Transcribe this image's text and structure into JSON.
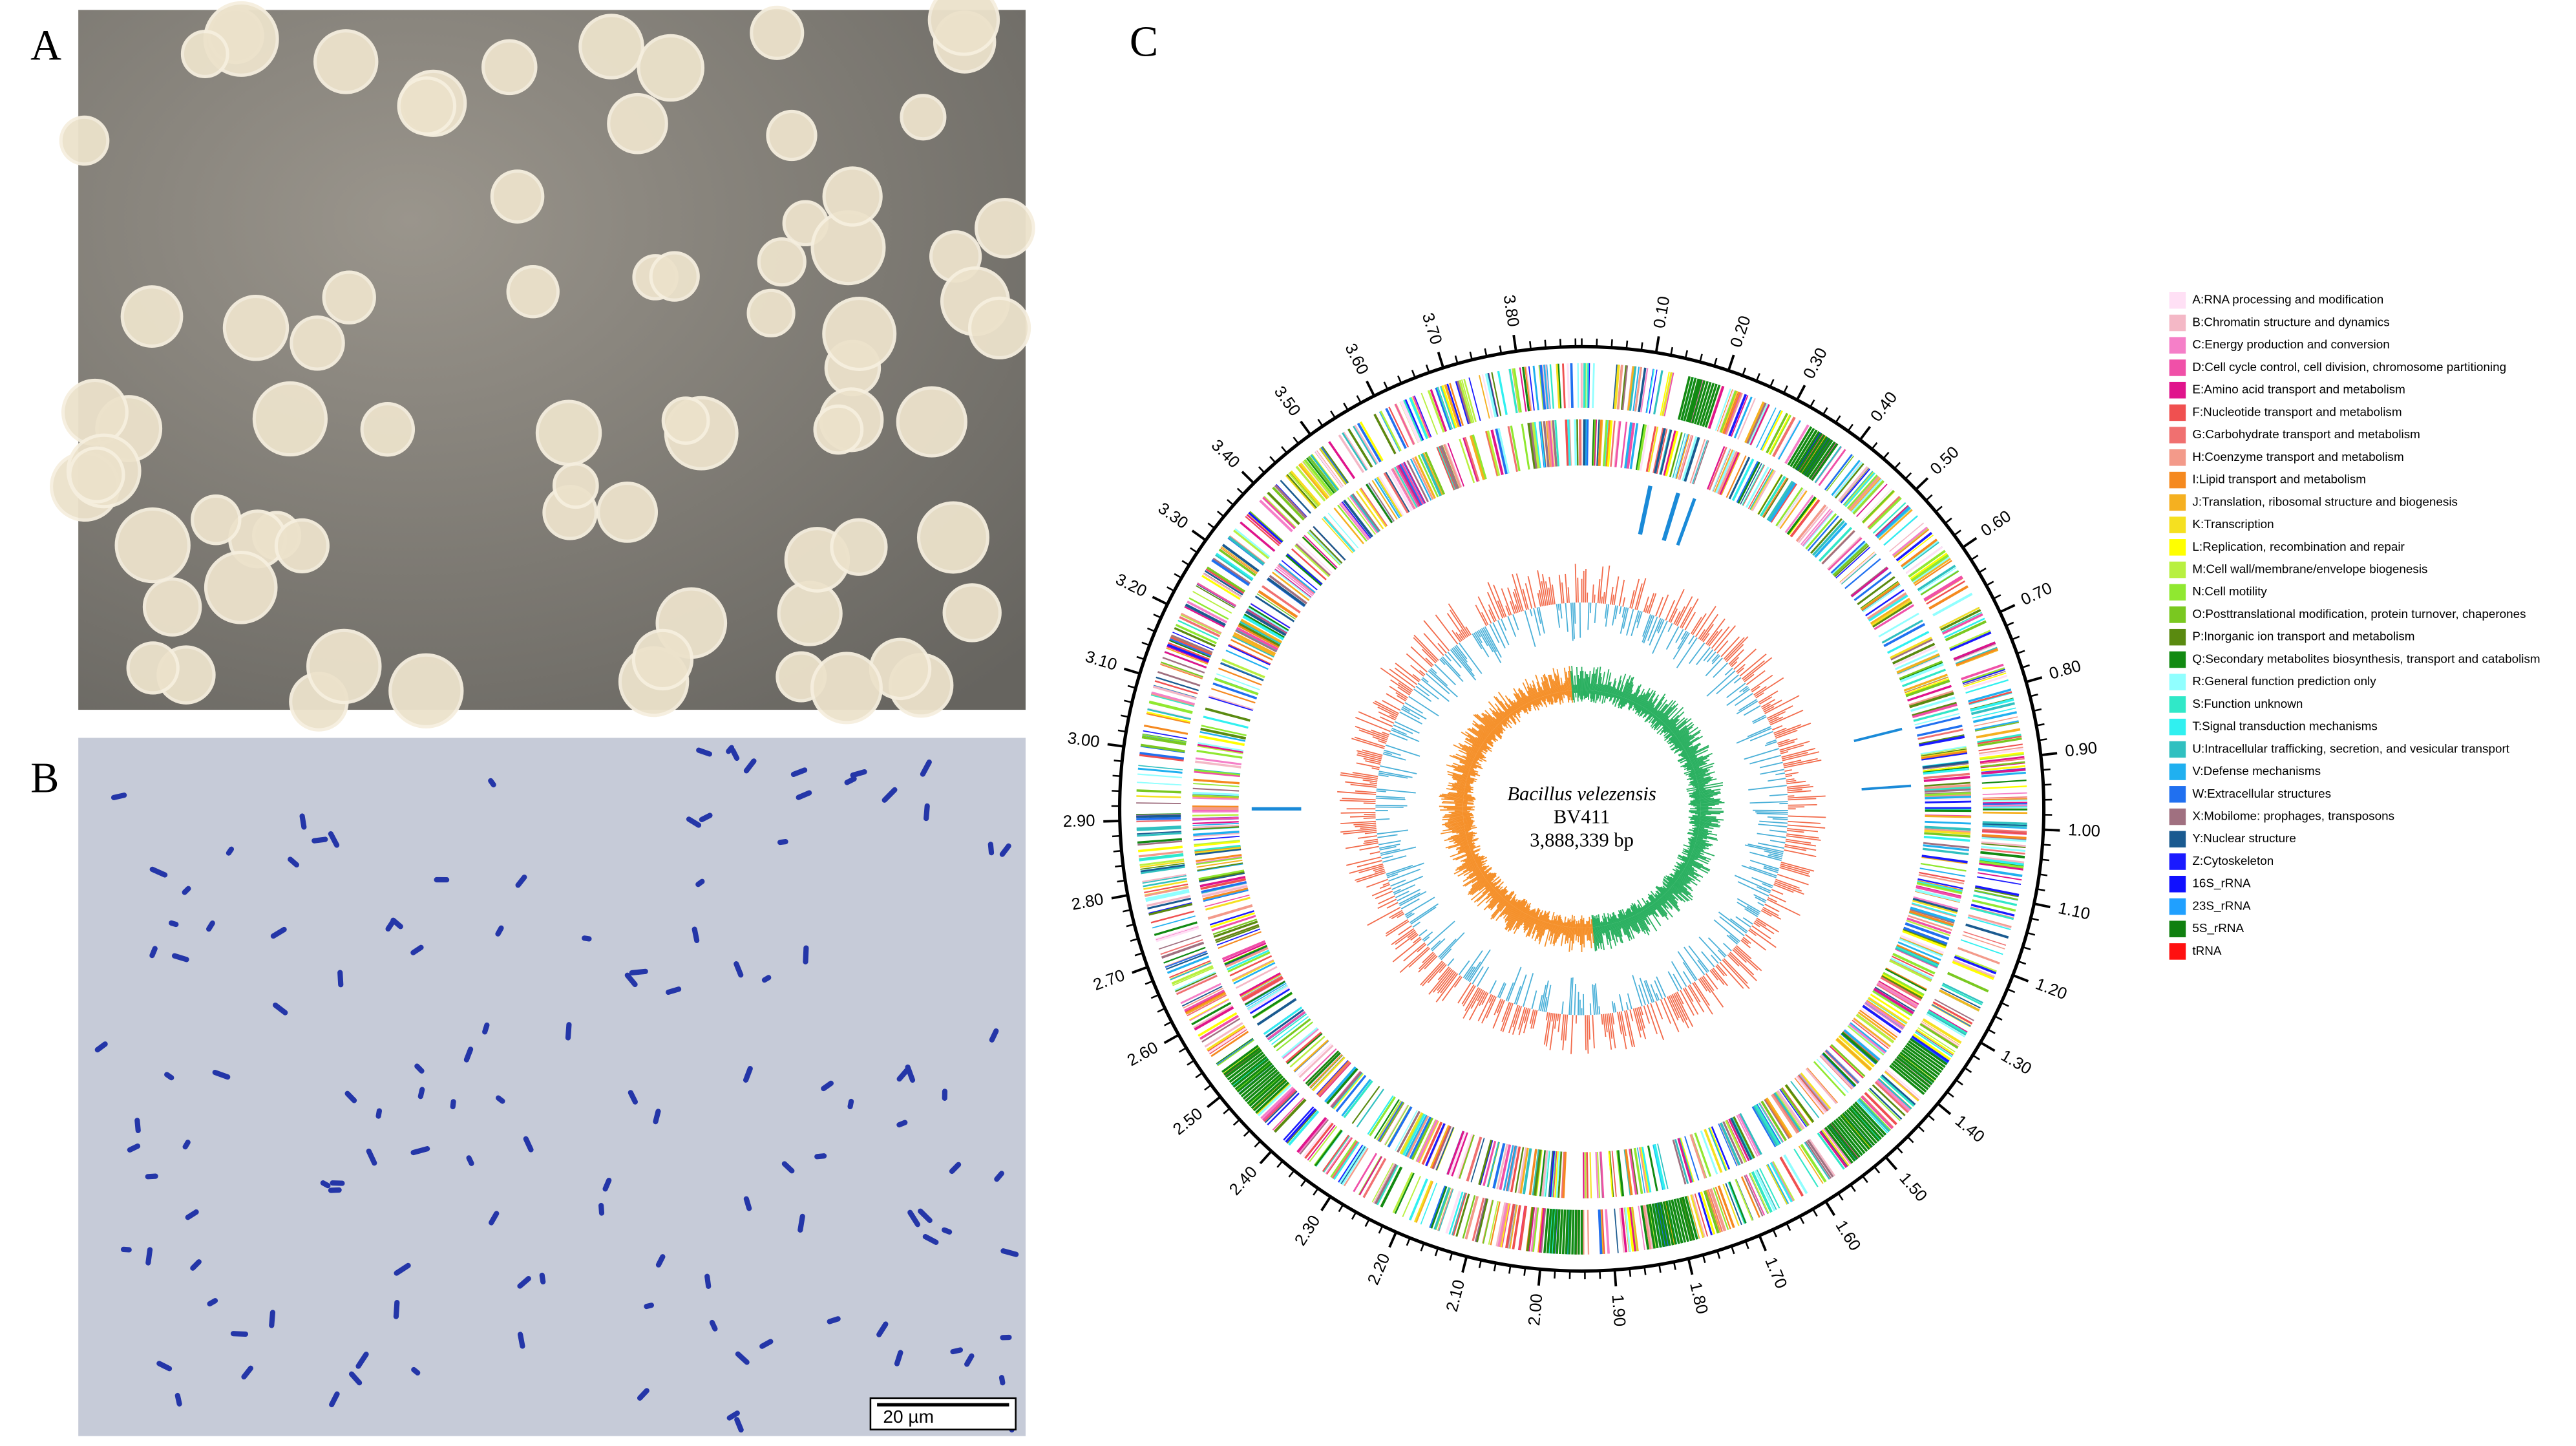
{
  "panels": {
    "a": {
      "label": "A"
    },
    "b": {
      "label": "B",
      "scale_bar": "20 µm"
    },
    "c": {
      "label": "C",
      "genome_map": {
        "organism": "Bacillus velezensis",
        "strain": "BV411",
        "length": "3,888,339 bp",
        "ticks": [
          "0.10",
          "0.20",
          "0.30",
          "0.40",
          "0.50",
          "0.60",
          "0.70",
          "0.80",
          "0.90",
          "1.00",
          "1.10",
          "1.20",
          "1.30",
          "1.40",
          "1.50",
          "1.60",
          "1.70",
          "1.80",
          "1.90",
          "2.00",
          "2.10",
          "2.20",
          "2.30",
          "2.40",
          "2.50",
          "2.60",
          "2.70",
          "2.80",
          "2.90",
          "3.00",
          "3.10",
          "3.20",
          "3.30",
          "3.40",
          "3.50",
          "3.60",
          "3.70",
          "3.80"
        ]
      },
      "legend": [
        {
          "label": "A:RNA processing and modification",
          "color": "#ffe0f5"
        },
        {
          "label": "B:Chromatin structure and dynamics",
          "color": "#f4b8c6"
        },
        {
          "label": "C:Energy production and conversion",
          "color": "#f57fc8"
        },
        {
          "label": "D:Cell cycle control, cell division, chromosome partitioning",
          "color": "#f050a8"
        },
        {
          "label": "E:Amino acid transport and metabolism",
          "color": "#e0148c"
        },
        {
          "label": "F:Nucleotide transport and metabolism",
          "color": "#f05050"
        },
        {
          "label": "G:Carbohydrate transport and metabolism",
          "color": "#f07070"
        },
        {
          "label": "H:Coenzyme transport and metabolism",
          "color": "#f39a8a"
        },
        {
          "label": "I:Lipid transport and metabolism",
          "color": "#f5891f"
        },
        {
          "label": "J:Translation, ribosomal structure and biogenesis",
          "color": "#f5b020"
        },
        {
          "label": "K:Transcription",
          "color": "#f5e020"
        },
        {
          "label": "L:Replication, recombination and repair",
          "color": "#ffff00"
        },
        {
          "label": "M:Cell wall/membrane/envelope biogenesis",
          "color": "#b8f040"
        },
        {
          "label": "N:Cell motility",
          "color": "#90e830"
        },
        {
          "label": "O:Posttranslational modification, protein turnover, chaperones",
          "color": "#7ac820"
        },
        {
          "label": "P:Inorganic ion transport and metabolism",
          "color": "#5a8a10"
        },
        {
          "label": "Q:Secondary metabolites biosynthesis, transport and catabolism",
          "color": "#128a12"
        },
        {
          "label": "R:General function prediction only",
          "color": "#90ffff"
        },
        {
          "label": "S:Function unknown",
          "color": "#30e8c8"
        },
        {
          "label": "T:Signal transduction mechanisms",
          "color": "#30f0f0"
        },
        {
          "label": "U:Intracellular trafficking, secretion, and vesicular transport",
          "color": "#30c0c0"
        },
        {
          "label": "V:Defense mechanisms",
          "color": "#20b0f0"
        },
        {
          "label": "W:Extracellular structures",
          "color": "#2070f0"
        },
        {
          "label": "X:Mobilome: prophages, transposons",
          "color": "#a07080"
        },
        {
          "label": "Y:Nuclear structure",
          "color": "#1a5a90"
        },
        {
          "label": "Z:Cytoskeleton",
          "color": "#1a1aff"
        },
        {
          "label": "16S_rRNA",
          "color": "#1010ff"
        },
        {
          "label": "23S_rRNA",
          "color": "#20a0ff"
        },
        {
          "label": "5S_rRNA",
          "color": "#108010"
        },
        {
          "label": "tRNA",
          "color": "#ff1010"
        }
      ]
    }
  }
}
